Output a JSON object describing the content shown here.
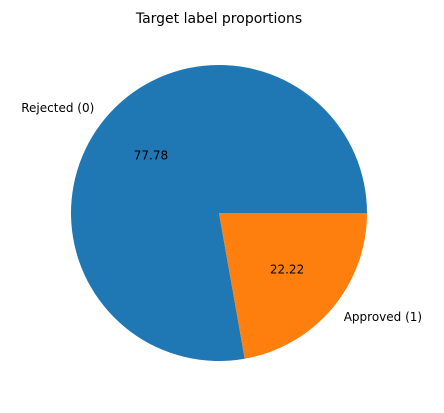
{
  "chart_data": {
    "type": "pie",
    "title": "Target label proportions",
    "labels": [
      "Rejected (0)",
      "Approved (1)"
    ],
    "values": [
      77.78,
      22.22
    ],
    "value_labels": [
      "77.78",
      "22.22"
    ],
    "colors": [
      "#1f77b4",
      "#ff7f0e"
    ],
    "start_angle_deg": 0,
    "direction": "counterclockwise",
    "legend": "none"
  }
}
